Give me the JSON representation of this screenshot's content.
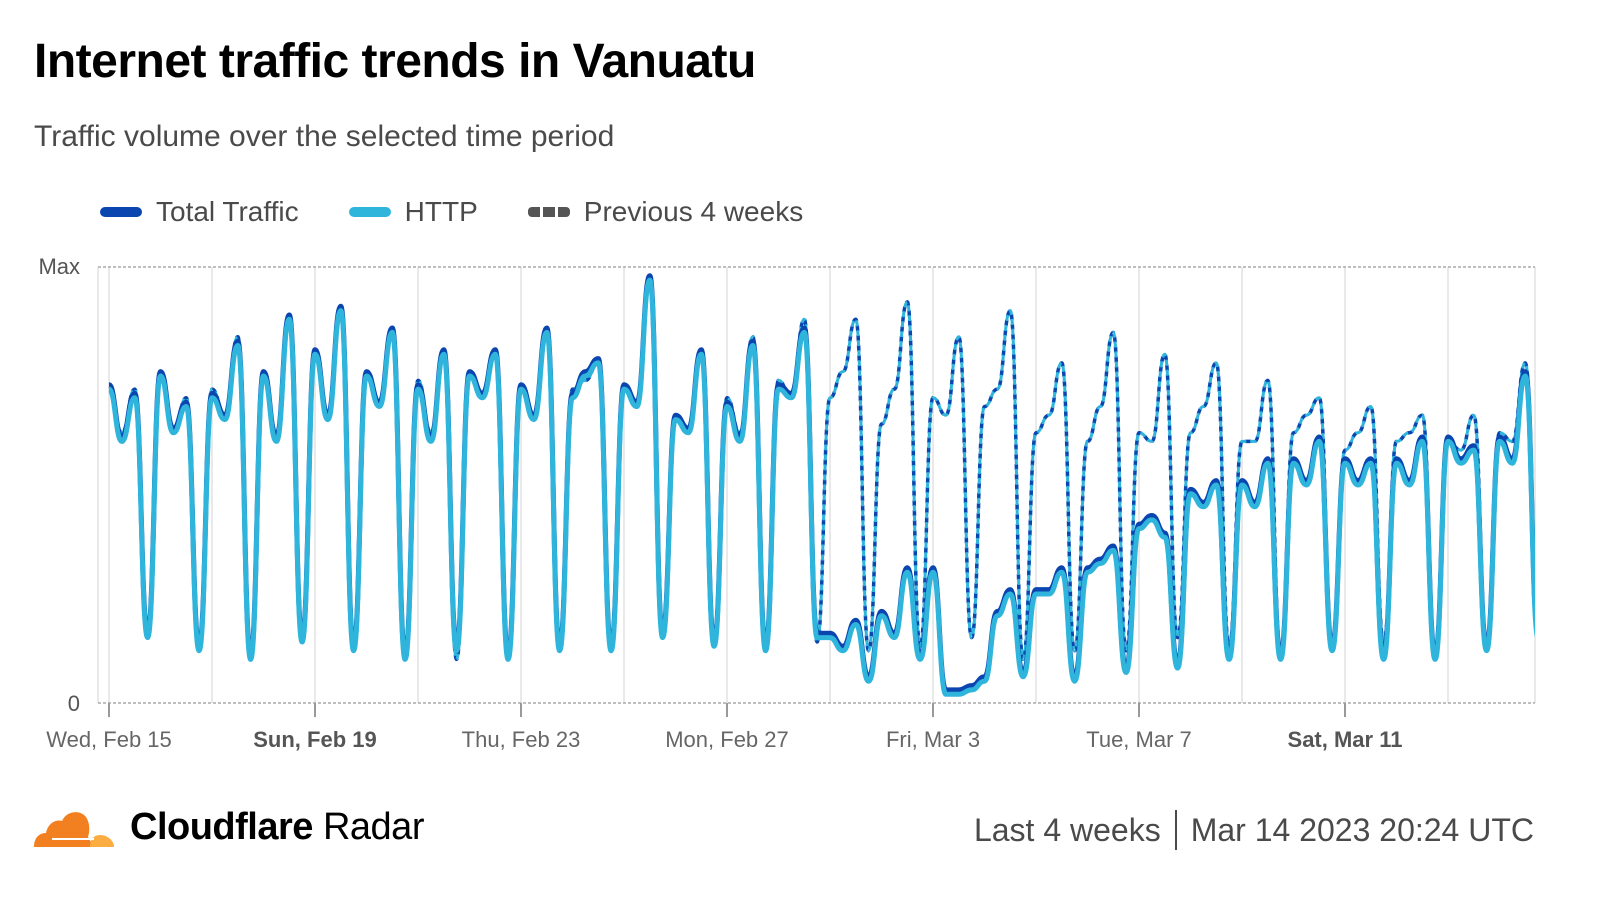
{
  "title": "Internet traffic trends in Vanuatu",
  "subtitle": "Traffic volume over the selected time period",
  "legend": [
    {
      "label": "Total Traffic",
      "color": "#0a45b0",
      "style": "solid"
    },
    {
      "label": "HTTP",
      "color": "#2fb5dc",
      "style": "solid"
    },
    {
      "label": "Previous 4 weeks",
      "color": "#555555",
      "style": "dashed"
    }
  ],
  "footer": {
    "brand_bold": "Cloudflare",
    "brand_light": "Radar",
    "range": "Last 4 weeks",
    "timestamp": "Mar 14 2023 20:24 UTC"
  },
  "chart_data": {
    "type": "line",
    "title": "Internet traffic trends in Vanuatu",
    "subtitle": "Traffic volume over the selected time period",
    "y_tick_labels": [
      "0",
      "Max"
    ],
    "ylim": [
      0,
      1
    ],
    "x_range": [
      "2023-02-15T00:00Z",
      "2023-03-14T16:30Z"
    ],
    "x_ticks": [
      {
        "date": "2023-02-15",
        "label": "Wed, Feb 15",
        "bold": false
      },
      {
        "date": "2023-02-19",
        "label": "Sun, Feb 19",
        "bold": true
      },
      {
        "date": "2023-02-23",
        "label": "Thu, Feb 23",
        "bold": false
      },
      {
        "date": "2023-02-27",
        "label": "Mon, Feb 27",
        "bold": false
      },
      {
        "date": "2023-03-03",
        "label": "Fri, Mar 3",
        "bold": false
      },
      {
        "date": "2023-03-07",
        "label": "Tue, Mar 7",
        "bold": false
      },
      {
        "date": "2023-03-11",
        "label": "Sat, Mar 11",
        "bold": true
      }
    ],
    "grid": "vertical every 2 days",
    "legend_position": "top-left",
    "hours_utc": [
      0,
      6,
      12,
      18
    ],
    "dates": [
      "2023-02-15",
      "2023-02-16",
      "2023-02-17",
      "2023-02-18",
      "2023-02-19",
      "2023-02-20",
      "2023-02-21",
      "2023-02-22",
      "2023-02-23",
      "2023-02-24",
      "2023-02-25",
      "2023-02-26",
      "2023-02-27",
      "2023-02-28",
      "2023-03-01",
      "2023-03-02",
      "2023-03-03",
      "2023-03-04",
      "2023-03-05",
      "2023-03-06",
      "2023-03-07",
      "2023-03-08",
      "2023-03-09",
      "2023-03-10",
      "2023-03-11",
      "2023-03-12",
      "2023-03-13",
      "2023-03-14"
    ],
    "series": [
      {
        "name": "Previous 4 weeks",
        "color": "#0a45b0",
        "dashed": true,
        "values": [
          [
            0.72,
            0.62,
            0.72,
            0.16
          ],
          [
            0.76,
            0.62,
            0.7,
            0.13
          ],
          [
            0.72,
            0.66,
            0.84,
            0.12
          ],
          [
            0.76,
            0.62,
            0.88,
            0.14
          ],
          [
            0.8,
            0.66,
            0.9,
            0.13
          ],
          [
            0.76,
            0.68,
            0.86,
            0.12
          ],
          [
            0.74,
            0.62,
            0.8,
            0.1
          ],
          [
            0.76,
            0.7,
            0.8,
            0.1
          ],
          [
            0.72,
            0.66,
            0.86,
            0.12
          ],
          [
            0.72,
            0.74,
            0.78,
            0.12
          ],
          [
            0.72,
            0.68,
            0.96,
            0.15
          ],
          [
            0.66,
            0.62,
            0.8,
            0.13
          ],
          [
            0.7,
            0.62,
            0.84,
            0.12
          ],
          [
            0.74,
            0.7,
            0.88,
            0.14
          ],
          [
            0.7,
            0.76,
            0.88,
            0.12
          ],
          [
            0.64,
            0.72,
            0.92,
            0.13
          ],
          [
            0.7,
            0.66,
            0.84,
            0.15
          ],
          [
            0.68,
            0.72,
            0.9,
            0.1
          ],
          [
            0.62,
            0.66,
            0.78,
            0.12
          ],
          [
            0.6,
            0.68,
            0.85,
            0.12
          ],
          [
            0.62,
            0.6,
            0.8,
            0.15
          ],
          [
            0.62,
            0.68,
            0.78,
            0.13
          ],
          [
            0.6,
            0.6,
            0.74,
            0.12
          ],
          [
            0.62,
            0.66,
            0.7,
            0.12
          ],
          [
            0.58,
            0.62,
            0.68,
            0.14
          ],
          [
            0.6,
            0.62,
            0.66,
            0.12
          ],
          [
            0.6,
            0.58,
            0.66,
            0.14
          ],
          [
            0.62,
            0.6,
            0.78,
            0.18
          ]
        ]
      },
      {
        "name": "Total Traffic",
        "color": "#0a45b0",
        "dashed": false,
        "values": [
          [
            0.73,
            0.61,
            0.71,
            0.16
          ],
          [
            0.76,
            0.63,
            0.69,
            0.13
          ],
          [
            0.71,
            0.66,
            0.83,
            0.11
          ],
          [
            0.76,
            0.61,
            0.89,
            0.15
          ],
          [
            0.81,
            0.66,
            0.91,
            0.13
          ],
          [
            0.76,
            0.69,
            0.86,
            0.11
          ],
          [
            0.73,
            0.61,
            0.81,
            0.13
          ],
          [
            0.76,
            0.71,
            0.81,
            0.11
          ],
          [
            0.73,
            0.66,
            0.86,
            0.13
          ],
          [
            0.71,
            0.76,
            0.79,
            0.13
          ],
          [
            0.73,
            0.69,
            0.98,
            0.16
          ],
          [
            0.66,
            0.63,
            0.81,
            0.14
          ],
          [
            0.69,
            0.61,
            0.83,
            0.13
          ],
          [
            0.73,
            0.71,
            0.86,
            0.16
          ],
          [
            0.16,
            0.13,
            0.19,
            0.06
          ],
          [
            0.21,
            0.16,
            0.31,
            0.11
          ],
          [
            0.31,
            0.03,
            0.03,
            0.04
          ],
          [
            0.06,
            0.21,
            0.26,
            0.07
          ],
          [
            0.26,
            0.26,
            0.31,
            0.06
          ],
          [
            0.31,
            0.33,
            0.36,
            0.08
          ],
          [
            0.41,
            0.43,
            0.39,
            0.09
          ],
          [
            0.49,
            0.46,
            0.51,
            0.11
          ],
          [
            0.51,
            0.46,
            0.56,
            0.11
          ],
          [
            0.56,
            0.51,
            0.61,
            0.13
          ],
          [
            0.56,
            0.51,
            0.56,
            0.11
          ],
          [
            0.56,
            0.51,
            0.61,
            0.11
          ],
          [
            0.61,
            0.56,
            0.59,
            0.13
          ],
          [
            0.61,
            0.56,
            0.76,
            0.16
          ]
        ]
      },
      {
        "name": "HTTP",
        "color": "#2fb5dc",
        "dashed": false,
        "values": [
          [
            0.72,
            0.6,
            0.7,
            0.15
          ],
          [
            0.75,
            0.62,
            0.68,
            0.12
          ],
          [
            0.7,
            0.65,
            0.82,
            0.1
          ],
          [
            0.75,
            0.6,
            0.88,
            0.14
          ],
          [
            0.8,
            0.65,
            0.9,
            0.12
          ],
          [
            0.75,
            0.68,
            0.85,
            0.1
          ],
          [
            0.72,
            0.6,
            0.8,
            0.12
          ],
          [
            0.75,
            0.7,
            0.8,
            0.1
          ],
          [
            0.72,
            0.65,
            0.85,
            0.12
          ],
          [
            0.7,
            0.75,
            0.78,
            0.12
          ],
          [
            0.72,
            0.68,
            0.97,
            0.15
          ],
          [
            0.65,
            0.62,
            0.8,
            0.13
          ],
          [
            0.68,
            0.6,
            0.82,
            0.12
          ],
          [
            0.72,
            0.7,
            0.85,
            0.15
          ],
          [
            0.15,
            0.12,
            0.18,
            0.05
          ],
          [
            0.2,
            0.15,
            0.3,
            0.1
          ],
          [
            0.3,
            0.02,
            0.02,
            0.03
          ],
          [
            0.05,
            0.2,
            0.25,
            0.06
          ],
          [
            0.25,
            0.25,
            0.3,
            0.05
          ],
          [
            0.3,
            0.32,
            0.35,
            0.07
          ],
          [
            0.4,
            0.42,
            0.38,
            0.08
          ],
          [
            0.48,
            0.45,
            0.5,
            0.1
          ],
          [
            0.5,
            0.45,
            0.55,
            0.1
          ],
          [
            0.55,
            0.5,
            0.6,
            0.12
          ],
          [
            0.55,
            0.5,
            0.55,
            0.1
          ],
          [
            0.55,
            0.5,
            0.6,
            0.1
          ],
          [
            0.6,
            0.55,
            0.58,
            0.12
          ],
          [
            0.6,
            0.55,
            0.75,
            0.15
          ]
        ]
      }
    ]
  }
}
